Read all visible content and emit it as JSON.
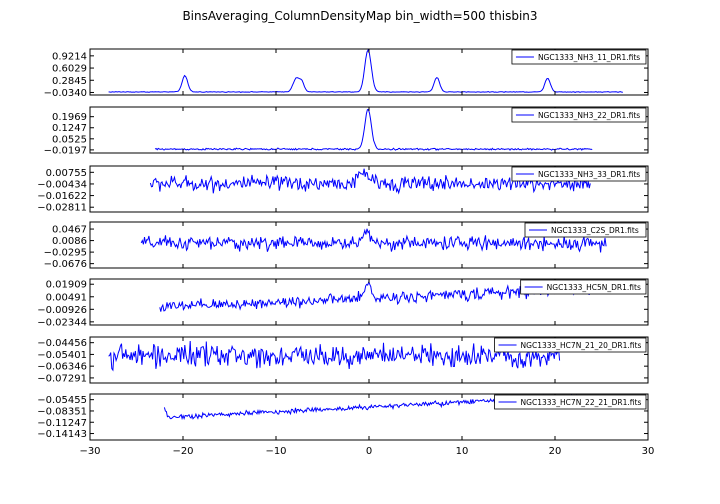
{
  "title": "BinsAveraging_ColumnDensityMap bin_width=500 thisbin3",
  "colors": {
    "line": "#0000ff",
    "axes": "#000000",
    "legend_border": "#000000"
  },
  "x_axis": {
    "range": [
      -30,
      30
    ],
    "ticks": [
      -30,
      -20,
      -10,
      0,
      10,
      20,
      30
    ],
    "tick_labels": [
      "−30",
      "−20",
      "−10",
      "0",
      "10",
      "20",
      "30"
    ]
  },
  "chart_data": [
    {
      "type": "line",
      "series": [
        {
          "name": "NGC1333_NH3_11_DR1.fits"
        }
      ],
      "x_range": [
        -28.0,
        27.3
      ],
      "ylim": [
        -0.1,
        1.1
      ],
      "yticks": [
        -0.034,
        0.2845,
        0.6029,
        0.9214
      ],
      "ytick_labels": [
        "−0.0340",
        "0.2845",
        "0.6029",
        "0.9214"
      ],
      "baseline": -0.02,
      "noise": 0.006,
      "peaks": [
        {
          "x": -19.8,
          "height": 0.42,
          "width": 0.3
        },
        {
          "x": -7.8,
          "height": 0.36,
          "width": 0.35
        },
        {
          "x": -7.2,
          "height": 0.22,
          "width": 0.25
        },
        {
          "x": -0.1,
          "height": 1.1,
          "width": 0.35
        },
        {
          "x": 7.3,
          "height": 0.38,
          "width": 0.3
        },
        {
          "x": 19.2,
          "height": 0.36,
          "width": 0.3
        }
      ],
      "legend_position": "upper right"
    },
    {
      "type": "line",
      "series": [
        {
          "name": "NGC1333_NH3_22_DR1.fits"
        }
      ],
      "x_range": [
        -23.0,
        24.0
      ],
      "ylim": [
        -0.04,
        0.26
      ],
      "yticks": [
        -0.0197,
        0.0525,
        0.1247,
        0.1969
      ],
      "ytick_labels": [
        "−0.0197",
        "0.0525",
        "0.1247",
        "0.1969"
      ],
      "baseline": -0.015,
      "noise": 0.004,
      "peaks": [
        {
          "x": -0.1,
          "height": 0.26,
          "width": 0.35
        }
      ],
      "legend_position": "upper right"
    },
    {
      "type": "line",
      "series": [
        {
          "name": "NGC1333_NH3_33_DR1.fits"
        }
      ],
      "x_range": [
        -23.5,
        23.8
      ],
      "ylim": [
        -0.033,
        0.014
      ],
      "yticks": [
        -0.02811,
        -0.01622,
        -0.00434,
        0.00755
      ],
      "ytick_labels": [
        "−0.02811",
        "−0.01622",
        "−0.00434",
        "0.00755"
      ],
      "baseline": -0.004,
      "noise": 0.0055,
      "peaks": [
        {
          "x": -0.5,
          "height": 0.012,
          "width": 0.5
        }
      ],
      "legend_position": "upper right"
    },
    {
      "type": "line",
      "series": [
        {
          "name": "NGC1333_C2S_DR1.fits"
        }
      ],
      "x_range": [
        -24.5,
        25.5
      ],
      "ylim": [
        -0.082,
        0.07
      ],
      "yticks": [
        -0.0676,
        -0.0295,
        0.0086,
        0.0467
      ],
      "ytick_labels": [
        "−0.0676",
        "−0.0295",
        "0.0086",
        "0.0467"
      ],
      "baseline": 0.0,
      "noise": 0.016,
      "peaks": [
        {
          "x": -0.2,
          "height": 0.04,
          "width": 0.4
        }
      ],
      "legend_position": "upper right"
    },
    {
      "type": "line",
      "series": [
        {
          "name": "NGC1333_HC5N_DR1.fits"
        }
      ],
      "x_range": [
        -22.5,
        24.0
      ],
      "ylim": [
        -0.027,
        0.025
      ],
      "yticks": [
        -0.02344,
        -0.00926,
        0.00491,
        0.01909
      ],
      "ytick_labels": [
        "−0.02344",
        "−0.00926",
        "0.00491",
        "0.01909"
      ],
      "baseline": -0.007,
      "noise": 0.0045,
      "trend": 0.00045,
      "peaks": [
        {
          "x": -0.1,
          "height": 0.016,
          "width": 0.35
        }
      ],
      "legend_position": "upper right"
    },
    {
      "type": "line",
      "series": [
        {
          "name": "NGC1333_HC7N_21_20_DR1.fits"
        }
      ],
      "x_range": [
        -28.0,
        20.5
      ],
      "ylim": [
        -0.077,
        -0.04
      ],
      "yticks": [
        -0.07291,
        -0.06346,
        -0.05401,
        -0.04456
      ],
      "ytick_labels": [
        "−0.07291",
        "−0.06346",
        "−0.05401",
        "−0.04456"
      ],
      "baseline": -0.055,
      "noise": 0.0065,
      "peaks": [],
      "legend_position": "upper right"
    },
    {
      "type": "line",
      "series": [
        {
          "name": "NGC1333_HC7N_22_21_DR1.fits"
        }
      ],
      "x_range": [
        -22.0,
        22.5
      ],
      "ylim": [
        -0.158,
        -0.04
      ],
      "yticks": [
        -0.14143,
        -0.11247,
        -0.08351,
        -0.05455
      ],
      "ytick_labels": [
        "−0.14143",
        "−0.11247",
        "−0.08351",
        "−0.05455"
      ],
      "baseline": -0.1,
      "noise": 0.0045,
      "trend": 0.0012,
      "peaks": [
        {
          "x": -22.0,
          "height": 0.02,
          "width": 0.2
        }
      ],
      "legend_position": "upper right"
    }
  ]
}
